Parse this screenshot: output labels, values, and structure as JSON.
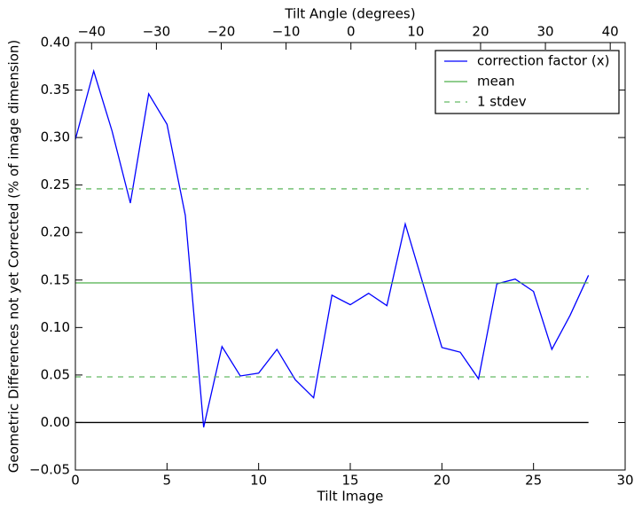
{
  "chart_data": {
    "type": "line",
    "xlabel": "Tilt Image",
    "ylabel": "Geometric Differences not yet Corrected (% of image dimension)",
    "x2label": "Tilt Angle (degrees)",
    "xlim": [
      0,
      30
    ],
    "xticks": [
      0,
      5,
      10,
      15,
      20,
      25,
      30
    ],
    "ylim": [
      -0.05,
      0.4
    ],
    "yticks": [
      {
        "value": -0.05,
        "label": "−0.05"
      },
      {
        "value": 0,
        "label": "0.00"
      },
      {
        "value": 0.05,
        "label": "0.05"
      },
      {
        "value": 0.1,
        "label": "0.10"
      },
      {
        "value": 0.15,
        "label": "0.15"
      },
      {
        "value": 0.2,
        "label": "0.20"
      },
      {
        "value": 0.25,
        "label": "0.25"
      },
      {
        "value": 0.3,
        "label": "0.30"
      },
      {
        "value": 0.35,
        "label": "0.35"
      },
      {
        "value": 0.4,
        "label": "0.40"
      }
    ],
    "x2lim": [
      -42.5,
      42.3
    ],
    "x2ticks": [
      {
        "value": -40,
        "label": "−40"
      },
      {
        "value": -30,
        "label": "−30"
      },
      {
        "value": -20,
        "label": "−20"
      },
      {
        "value": -10,
        "label": "−10"
      },
      0,
      10,
      20,
      30,
      40
    ],
    "x": [
      0,
      1,
      2,
      3,
      4,
      5,
      6,
      7,
      8,
      9,
      10,
      11,
      12,
      13,
      14,
      15,
      16,
      17,
      18,
      19,
      20,
      21,
      22,
      23,
      24,
      25,
      26,
      27,
      28
    ],
    "series": [
      {
        "name": "correction factor (x)",
        "color": "#0000ff",
        "values": [
          0.298,
          0.37,
          0.307,
          0.231,
          0.346,
          0.314,
          0.218,
          -0.005,
          0.08,
          0.049,
          0.052,
          0.077,
          0.045,
          0.026,
          0.134,
          0.124,
          0.136,
          0.123,
          0.209,
          0.144,
          0.079,
          0.074,
          0.046,
          0.146,
          0.151,
          0.138,
          0.077,
          0.113,
          0.155
        ]
      },
      {
        "name": "mean",
        "color": "#4daf4a",
        "hline": [
          0.147
        ]
      },
      {
        "name": "1 stdev",
        "color": "#66bb66",
        "dashed": true,
        "hline": [
          0.048,
          0.246
        ]
      }
    ],
    "zero_line": 0,
    "legend": "upper right"
  }
}
